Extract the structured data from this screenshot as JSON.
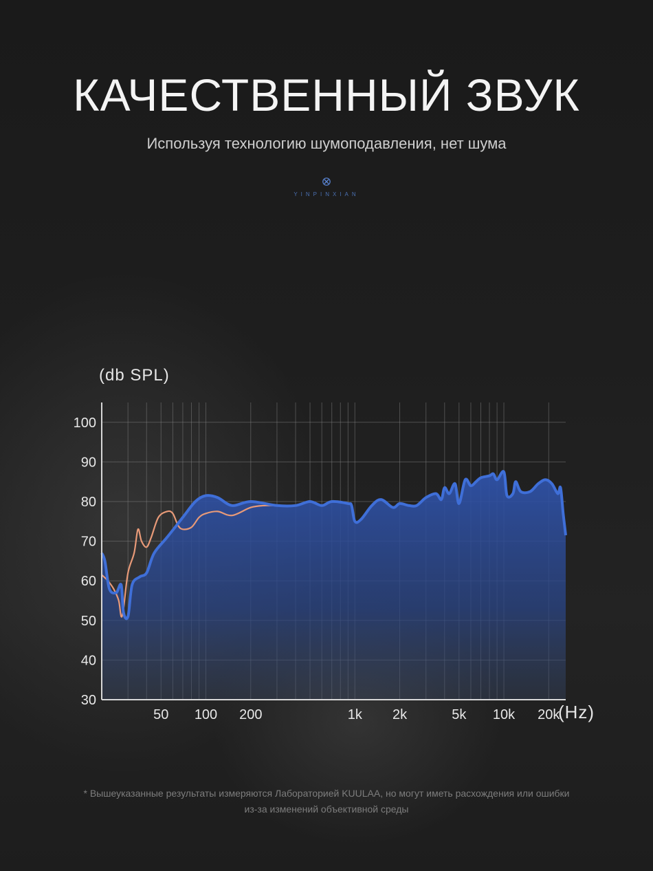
{
  "header": {
    "title": "КАЧЕСТВЕННЫЙ ЗВУК",
    "subtitle": "Используя технологию шумоподавления, нет шума",
    "brand": "YINPINXIAN"
  },
  "footnote": {
    "line1": "* Вышеуказанные результаты измеряются Лабораторией KUULAA, но могут иметь расхождения или ошибки",
    "line2": "из-за изменений объективной среды"
  },
  "colors": {
    "primary_curve": "#3f6fd8",
    "secondary_curve": "#e89a78",
    "fill": "#2a4a9a",
    "grid": "#8a8a8a"
  },
  "chart_data": {
    "type": "line",
    "ylabel": "(db SPL)",
    "xlabel": "(Hz)",
    "x_scale": "log",
    "xlim": [
      20,
      26000
    ],
    "ylim": [
      30,
      105
    ],
    "y_ticks": [
      30,
      40,
      50,
      60,
      70,
      80,
      90,
      100
    ],
    "x_ticks": [
      {
        "value": 50,
        "label": "50"
      },
      {
        "value": 100,
        "label": "100"
      },
      {
        "value": 200,
        "label": "200"
      },
      {
        "value": 1000,
        "label": "1k"
      },
      {
        "value": 2000,
        "label": "2k"
      },
      {
        "value": 5000,
        "label": "5k"
      },
      {
        "value": 10000,
        "label": "10k"
      },
      {
        "value": 20000,
        "label": "20k"
      }
    ],
    "grid": true,
    "series": [
      {
        "role": "primary",
        "points": [
          [
            20,
            67
          ],
          [
            21,
            65
          ],
          [
            22.5,
            58
          ],
          [
            25,
            57
          ],
          [
            27,
            59
          ],
          [
            28,
            52
          ],
          [
            30,
            51
          ],
          [
            32,
            59
          ],
          [
            36,
            61
          ],
          [
            40,
            62
          ],
          [
            45,
            67
          ],
          [
            55,
            71
          ],
          [
            70,
            76
          ],
          [
            85,
            80
          ],
          [
            100,
            81.5
          ],
          [
            120,
            81
          ],
          [
            150,
            79
          ],
          [
            200,
            80
          ],
          [
            300,
            79
          ],
          [
            400,
            79
          ],
          [
            500,
            80
          ],
          [
            600,
            79
          ],
          [
            700,
            80
          ],
          [
            900,
            79.5
          ],
          [
            950,
            79
          ],
          [
            1000,
            75
          ],
          [
            1100,
            75.5
          ],
          [
            1300,
            79
          ],
          [
            1500,
            80.5
          ],
          [
            1800,
            78.5
          ],
          [
            2000,
            79.5
          ],
          [
            2300,
            79
          ],
          [
            2600,
            79
          ],
          [
            3000,
            81
          ],
          [
            3500,
            82
          ],
          [
            3800,
            80.5
          ],
          [
            4000,
            83.5
          ],
          [
            4300,
            82
          ],
          [
            4700,
            84.5
          ],
          [
            5000,
            79.5
          ],
          [
            5500,
            85.5
          ],
          [
            6000,
            84
          ],
          [
            6500,
            85
          ],
          [
            7000,
            86
          ],
          [
            8000,
            86.5
          ],
          [
            8500,
            87
          ],
          [
            9000,
            85.5
          ],
          [
            10000,
            87.5
          ],
          [
            10500,
            81.5
          ],
          [
            11500,
            82
          ],
          [
            12000,
            85
          ],
          [
            13000,
            82.5
          ],
          [
            15000,
            82.5
          ],
          [
            17000,
            84.5
          ],
          [
            19000,
            85.5
          ],
          [
            21000,
            84.5
          ],
          [
            23000,
            82
          ],
          [
            24000,
            83.5
          ],
          [
            25000,
            77
          ],
          [
            26000,
            71.5
          ]
        ]
      },
      {
        "role": "secondary",
        "points": [
          [
            20,
            61.5
          ],
          [
            22,
            60
          ],
          [
            24,
            58
          ],
          [
            26,
            55
          ],
          [
            27,
            51
          ],
          [
            28,
            53
          ],
          [
            30,
            62
          ],
          [
            33,
            67
          ],
          [
            35,
            73
          ],
          [
            37,
            70
          ],
          [
            40,
            68.5
          ],
          [
            43,
            71
          ],
          [
            48,
            76
          ],
          [
            55,
            77.5
          ],
          [
            60,
            77
          ],
          [
            65,
            74
          ],
          [
            70,
            73
          ],
          [
            80,
            73.5
          ],
          [
            90,
            76
          ],
          [
            100,
            77
          ],
          [
            120,
            77.5
          ],
          [
            150,
            76.5
          ],
          [
            200,
            78.5
          ],
          [
            250,
            79
          ],
          [
            300,
            79
          ]
        ]
      }
    ]
  }
}
